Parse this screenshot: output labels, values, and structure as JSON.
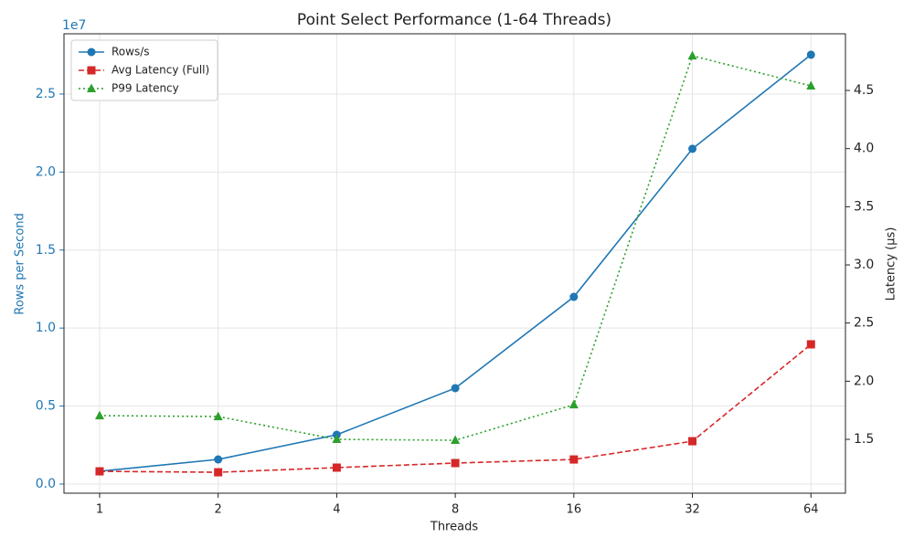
{
  "chart_data": {
    "type": "line",
    "title": "Point Select Performance (1-64 Threads)",
    "x_label": "Threads",
    "y_label": "Rows per Second",
    "y2_label": "Latency (μs)",
    "y_offset_label": "1e7",
    "x_scale": "log2",
    "x": [
      1,
      2,
      4,
      8,
      16,
      32,
      64
    ],
    "xlim": [
      0.812,
      78.3
    ],
    "xticks": [
      1,
      2,
      4,
      8,
      16,
      32,
      64
    ],
    "ylim": [
      -585000,
      28860000
    ],
    "yticks": [
      {
        "value": 0,
        "label": "0.0"
      },
      {
        "value": 5000000,
        "label": "0.5"
      },
      {
        "value": 10000000,
        "label": "1.0"
      },
      {
        "value": 15000000,
        "label": "1.5"
      },
      {
        "value": 20000000,
        "label": "2.0"
      },
      {
        "value": 25000000,
        "label": "2.5"
      }
    ],
    "y2lim": [
      1.037,
      4.987
    ],
    "y2ticks": [
      1.5,
      {
        "value": 2,
        "label": "2.0"
      },
      2.5,
      {
        "value": 3,
        "label": "3.0"
      },
      3.5,
      {
        "value": 4,
        "label": "4.0"
      },
      4.5
    ],
    "grid": true,
    "legend": "upper-left",
    "series": [
      {
        "name": "Rows/s",
        "color": "#1f77b4",
        "dash": "solid",
        "marker": "circle",
        "axis": "y",
        "values": [
          820000,
          1580000,
          3160000,
          6150000,
          12000000,
          21490000,
          27520000
        ]
      },
      {
        "name": "Avg Latency (Full)",
        "color": "#d62728",
        "dash": "dashed",
        "marker": "square",
        "axis": "y2",
        "values": [
          1.225,
          1.217,
          1.257,
          1.296,
          1.327,
          1.484,
          2.317
        ]
      },
      {
        "name": "P99 Latency",
        "color": "#2ca02c",
        "dash": "dotted",
        "marker": "triangle",
        "axis": "y2",
        "values": [
          1.704,
          1.696,
          1.5,
          1.492,
          1.798,
          4.798,
          4.539
        ]
      }
    ]
  }
}
